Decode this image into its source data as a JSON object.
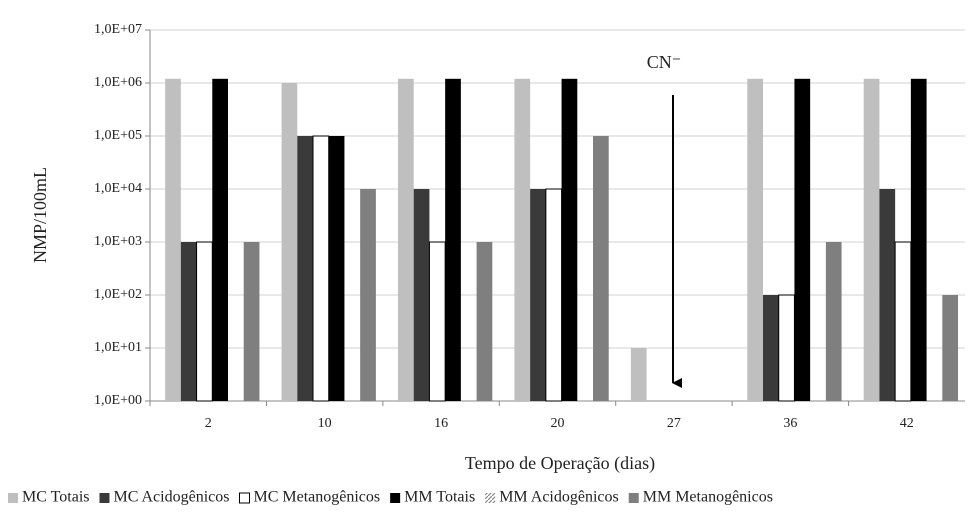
{
  "chart_data": {
    "type": "bar",
    "log_scale": true,
    "grid": true,
    "legend": "bottom",
    "x_label": "Tempo de Operação (dias)",
    "y_label": "NMP/100mL",
    "annotation": "CN⁻",
    "categories": [
      "2",
      "10",
      "16",
      "20",
      "27",
      "36",
      "42"
    ],
    "ylim": [
      1,
      10000000
    ],
    "yticks": [
      {
        "value": 1,
        "label": "1,0E+00"
      },
      {
        "value": 10,
        "label": "1,0E+01"
      },
      {
        "value": 100,
        "label": "1,0E+02"
      },
      {
        "value": 1000,
        "label": "1,0E+03"
      },
      {
        "value": 10000,
        "label": "1,0E+04"
      },
      {
        "value": 100000,
        "label": "1,0E+05"
      },
      {
        "value": 1000000,
        "label": "1,0E+06"
      },
      {
        "value": 10000000,
        "label": "1,0E+07"
      }
    ],
    "series": [
      {
        "name": "MC Totais",
        "color": "#bfbfbf",
        "values": [
          1200000,
          1000000,
          1200000,
          1200000,
          10,
          1200000,
          1200000
        ]
      },
      {
        "name": "MC Acidogênicos",
        "color": "#3a3a3a",
        "values": [
          1000,
          100000,
          10000,
          10000,
          null,
          100,
          10000
        ]
      },
      {
        "name": "MC Metanogênicos",
        "color": "#ffffff",
        "values": [
          1000,
          100000,
          1000,
          10000,
          null,
          100,
          1000
        ]
      },
      {
        "name": "MM Totais",
        "color": "#000000",
        "values": [
          1200000,
          100000,
          1200000,
          1200000,
          null,
          1200000,
          1200000
        ]
      },
      {
        "name": "MM Acidogênicos",
        "color": "#a6a6a6",
        "values": [
          null,
          null,
          null,
          null,
          null,
          null,
          null
        ]
      },
      {
        "name": "MM Metanogênicos",
        "color": "#7f7f7f",
        "values": [
          1000,
          10000,
          1000,
          100000,
          null,
          1000,
          100
        ]
      }
    ]
  }
}
